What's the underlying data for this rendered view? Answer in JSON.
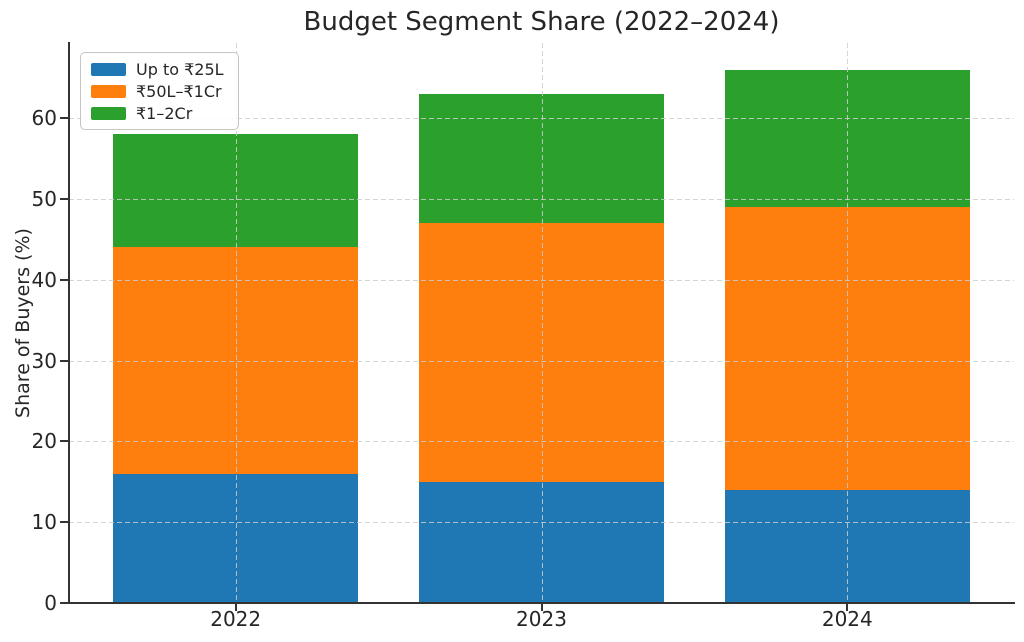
{
  "chart_data": {
    "type": "bar",
    "stacked": true,
    "title": "Budget Segment Share (2022–2024)",
    "xlabel": "",
    "ylabel": "Share of Buyers (%)",
    "categories": [
      "2022",
      "2023",
      "2024"
    ],
    "series": [
      {
        "name": "Up to ₹25L",
        "color": "#1f77b4",
        "values": [
          16,
          15,
          14
        ]
      },
      {
        "name": "₹50L–₹1Cr",
        "color": "#ff7f0e",
        "values": [
          28,
          32,
          35
        ]
      },
      {
        "name": "₹1–2Cr",
        "color": "#2ca02c",
        "values": [
          14,
          16,
          17
        ]
      }
    ],
    "stack_totals": [
      58,
      63,
      66
    ],
    "yticks": [
      0,
      10,
      20,
      30,
      40,
      50,
      60
    ],
    "ylim": [
      0,
      69.3
    ],
    "grid": "dashed, both axes, drawn above bars",
    "legend_position": "upper-left",
    "grid_color": "#cccccc",
    "axis_color": "#333333",
    "text_color": "#262626",
    "background": "#ffffff"
  }
}
